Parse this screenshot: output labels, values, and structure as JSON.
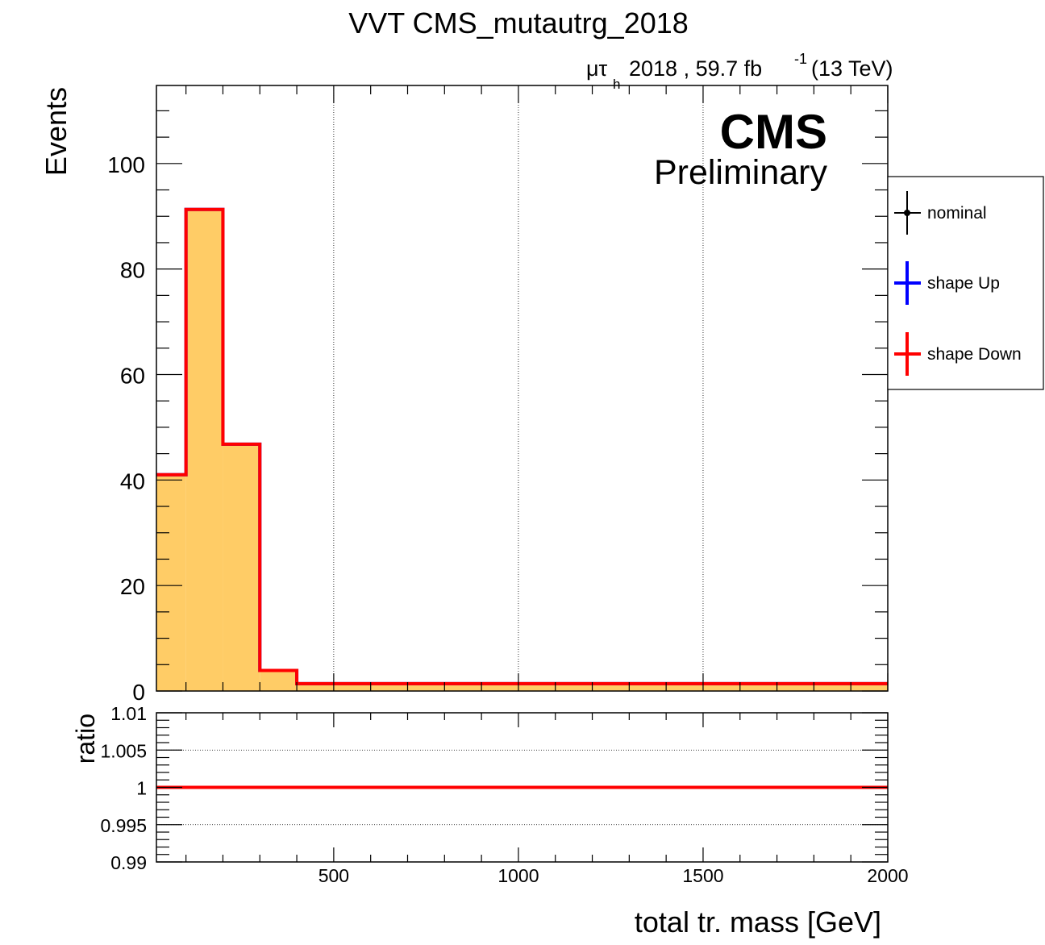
{
  "chart_data": [
    {
      "type": "line",
      "panel": "main",
      "title": "VVT CMS_mutautrg_2018",
      "lumi": {
        "channel_mu": "μτ",
        "channel_sub": "h",
        "text": "2018 , 59.7 fb",
        "sup": "-1",
        "energy": "(13 TeV)"
      },
      "cms_label": "CMS",
      "cms_sublabel": "Preliminary",
      "ylabel": "Events",
      "xlim": [
        20,
        2000
      ],
      "ylim": [
        0,
        114.8
      ],
      "yticks": [
        0,
        20,
        40,
        60,
        80,
        100
      ],
      "ytick_labels": [
        "0",
        "20",
        "40",
        "60",
        "80",
        "100"
      ],
      "xgrid": [
        500,
        1000,
        1500
      ],
      "grid": "x",
      "legend_position": "right-outside",
      "legend": [
        {
          "name": "nominal",
          "color": "#000000"
        },
        {
          "name": "shape Up",
          "color": "#0000ff"
        },
        {
          "name": "shape Down",
          "color": "#ff0000"
        }
      ],
      "bin_edges": [
        20,
        100,
        200,
        300,
        400,
        2000
      ],
      "nominal_values": [
        41.0,
        91.3,
        46.8,
        3.9,
        1.4
      ],
      "series": [
        {
          "name": "shape Up",
          "color": "#0000ff",
          "values": [
            41.0,
            91.3,
            46.8,
            3.9,
            1.4
          ]
        },
        {
          "name": "shape Down",
          "color": "#ff0000",
          "values": [
            41.0,
            91.3,
            46.8,
            3.9,
            1.4
          ]
        }
      ],
      "fill_color": "#ffcc66"
    },
    {
      "type": "line",
      "panel": "ratio",
      "ylabel": "ratio",
      "xlabel": "total tr. mass [GeV]",
      "xlim": [
        20,
        2000
      ],
      "ylim": [
        0.99,
        1.01
      ],
      "yticks": [
        0.99,
        0.995,
        1,
        1.005,
        1.01
      ],
      "ytick_labels": [
        "0.99",
        "0.995",
        "1",
        "1.005",
        "1.01"
      ],
      "ygrid": [
        0.995,
        1.005
      ],
      "xticks": [
        500,
        1000,
        1500,
        2000
      ],
      "xtick_labels": [
        "500",
        "1000",
        "1500",
        "2000"
      ],
      "series": [
        {
          "name": "shape Up",
          "color": "#0000ff",
          "x": [
            20,
            2000
          ],
          "values": [
            1,
            1
          ]
        },
        {
          "name": "shape Down",
          "color": "#ff0000",
          "x": [
            20,
            2000
          ],
          "values": [
            1,
            1
          ]
        }
      ]
    }
  ]
}
